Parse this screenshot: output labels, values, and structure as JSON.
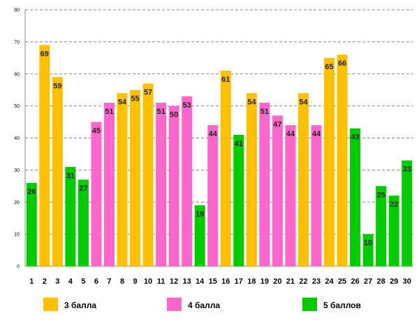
{
  "chart_data": {
    "type": "bar",
    "title": "",
    "xlabel": "",
    "ylabel": "",
    "ylim": [
      0,
      80
    ],
    "yticks": [
      "0",
      "10",
      "20",
      "30",
      "40",
      "50",
      "60",
      "70",
      "80"
    ],
    "grid": true,
    "categories": [
      "1",
      "2",
      "3",
      "4",
      "5",
      "6",
      "7",
      "8",
      "9",
      "10",
      "11",
      "12",
      "13",
      "14",
      "15",
      "16",
      "17",
      "18",
      "19",
      "20",
      "21",
      "22",
      "23",
      "24",
      "25",
      "26",
      "27",
      "28",
      "29",
      "30"
    ],
    "values": [
      26,
      69,
      59,
      31,
      27,
      45,
      51,
      54,
      55,
      57,
      51,
      50,
      53,
      19,
      44,
      61,
      41,
      54,
      51,
      47,
      44,
      54,
      44,
      65,
      66,
      43,
      10,
      25,
      22,
      33
    ],
    "labels": [
      "26",
      "69",
      "59",
      "31",
      "27",
      "45",
      "51",
      "54",
      "55",
      "57",
      "51",
      "50",
      "53",
      "19",
      "44",
      "61",
      "41",
      "54",
      "51",
      "47",
      "44",
      "54",
      "44",
      "65",
      "66",
      "43",
      "10",
      "25",
      "22",
      "33"
    ],
    "groups": [
      3,
      1,
      1,
      3,
      3,
      2,
      2,
      1,
      1,
      1,
      2,
      2,
      2,
      3,
      2,
      1,
      3,
      1,
      2,
      2,
      2,
      1,
      2,
      1,
      1,
      3,
      3,
      3,
      3,
      3
    ],
    "legend": [
      {
        "label": "3 балла",
        "color": "#FFC000"
      },
      {
        "label": "4 балла",
        "color": "#FF66CC"
      },
      {
        "label": "5 баллов",
        "color": "#00CC00"
      }
    ],
    "legend_position": "bottom"
  }
}
